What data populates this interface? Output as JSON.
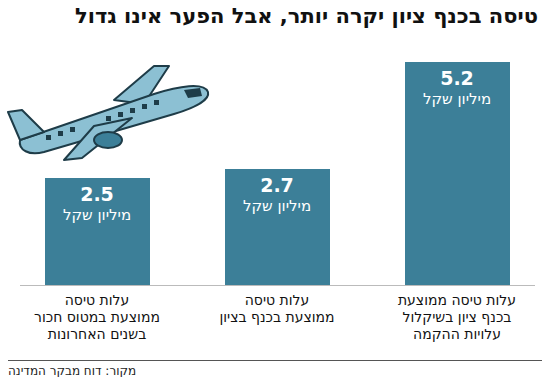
{
  "chart_data": {
    "type": "bar",
    "title": "טיסה בכנף ציון יקרה יותר, אבל הפער אינו גדול",
    "categories": [
      "עלות טיסה ממוצעת\nבכנף ציון בשיקלול\nעלויות ההקמה",
      "עלות טיסה\nממוצעת בכנף בציון",
      "עלות טיסה\nממוצעת במטוס חכור\nבשנים האחרונות"
    ],
    "values": [
      5.2,
      2.7,
      2.5
    ],
    "value_labels": [
      "5.2\nמיליון שקל",
      "2.7\nמיליון שקל",
      "2.5\nמיליון שקל"
    ],
    "color": "#3c7f98",
    "ylim": [
      0,
      5.2
    ],
    "data_labels": true,
    "tick_labels": false,
    "grid": false,
    "source": "מקור: דוח מבקר המדינה"
  }
}
